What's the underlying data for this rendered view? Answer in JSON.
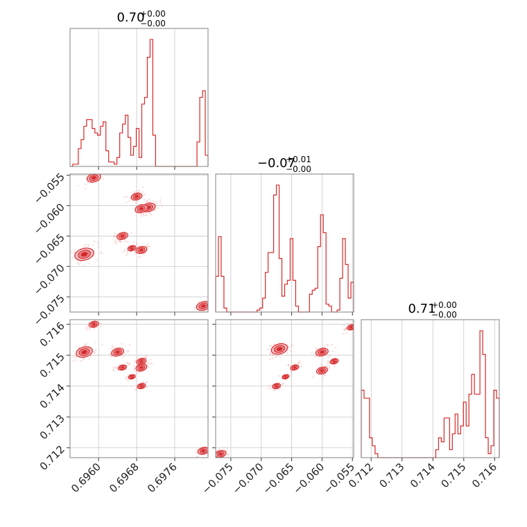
{
  "chart_data": {
    "type": "corner",
    "colors": {
      "main": "#d62728",
      "frame": "#808080",
      "grid": "#c8c8c8"
    },
    "parameters": [
      {
        "name": "p1",
        "title_value": "0.70",
        "title_upper": "+0.00",
        "title_lower": "−0.00",
        "range": [
          0.6954,
          0.6983
        ],
        "ticks": [
          0.696,
          0.6968,
          0.6976
        ],
        "tick_labels": [
          "0.6960",
          "0.6968",
          "0.6976"
        ],
        "hist_edges_count": 50,
        "hist_values": [
          0,
          1,
          1,
          8,
          12,
          18,
          21,
          21,
          17,
          15,
          14,
          18,
          20,
          7,
          2,
          2,
          1,
          4,
          15,
          19,
          23,
          13,
          5,
          9,
          17,
          4,
          28,
          31,
          49,
          57,
          14,
          0,
          0,
          0,
          0,
          0,
          0,
          0,
          0,
          0,
          0,
          0,
          0,
          0,
          0,
          0,
          11,
          31,
          34,
          5
        ]
      },
      {
        "name": "p2",
        "title_value": "−0.07",
        "title_upper": "+0.01",
        "title_lower": "−0.00",
        "range": [
          -0.0775,
          -0.0548
        ],
        "ticks": [
          -0.075,
          -0.07,
          -0.065,
          -0.06,
          -0.055
        ],
        "tick_labels": [
          "−0.075",
          "−0.070",
          "−0.065",
          "−0.060",
          "−0.055"
        ],
        "hist_edges_count": 50,
        "hist_values": [
          18,
          38,
          18,
          2,
          0,
          0,
          0,
          0,
          0,
          0,
          0,
          0,
          0,
          0,
          0,
          1,
          2,
          7,
          20,
          30,
          30,
          59,
          64,
          27,
          8,
          14,
          16,
          37,
          16,
          3,
          0,
          0,
          0,
          0,
          9,
          11,
          12,
          33,
          49,
          40,
          4,
          3,
          0,
          0,
          1,
          17,
          37,
          24,
          7,
          15
        ]
      },
      {
        "name": "p3",
        "title_value": "0.71",
        "title_upper": "+0.00",
        "title_lower": "−0.00",
        "range": [
          0.71168,
          0.71615
        ],
        "ticks": [
          0.712,
          0.713,
          0.714,
          0.715,
          0.716
        ],
        "tick_labels": [
          "0.712",
          "0.713",
          "0.714",
          "0.715",
          "0.716"
        ],
        "hist_edges_count": 50,
        "hist_values": [
          17,
          15,
          15,
          5,
          3,
          1,
          0,
          0,
          0,
          0,
          0,
          0,
          0,
          0,
          0,
          0,
          0,
          0,
          0,
          0,
          0,
          0,
          0,
          0,
          0,
          0,
          0,
          2,
          5,
          4,
          10,
          10,
          2,
          6,
          11,
          6,
          8,
          14,
          8,
          16,
          21,
          16,
          16,
          32,
          26,
          5,
          1,
          3,
          17,
          15
        ]
      }
    ],
    "blobs_2d": {
      "p2_vs_p1": [
        [
          0.6959,
          -0.0554,
          1.0
        ],
        [
          0.69705,
          -0.0603,
          1.0
        ],
        [
          0.6968,
          -0.0585,
          0.8
        ],
        [
          0.6969,
          -0.0605,
          0.9
        ],
        [
          0.6965,
          -0.065,
          0.8
        ],
        [
          0.6967,
          -0.067,
          0.6
        ],
        [
          0.6969,
          -0.0673,
          0.8
        ],
        [
          0.6957,
          -0.068,
          1.4
        ],
        [
          0.6982,
          -0.0765,
          1.0
        ]
      ],
      "p3_vs_p1": [
        [
          0.6959,
          0.716,
          0.7
        ],
        [
          0.6957,
          0.7151,
          1.2
        ],
        [
          0.6964,
          0.7151,
          0.9
        ],
        [
          0.6969,
          0.7148,
          0.7
        ],
        [
          0.6965,
          0.7146,
          0.6
        ],
        [
          0.6969,
          0.7146,
          0.8
        ],
        [
          0.6967,
          0.7143,
          0.5
        ],
        [
          0.6969,
          0.714,
          0.6
        ],
        [
          0.6982,
          0.7119,
          0.8
        ]
      ],
      "p3_vs_p2": [
        [
          -0.067,
          0.7152,
          1.2
        ],
        [
          -0.06,
          0.7151,
          0.9
        ],
        [
          -0.0645,
          0.7146,
          0.6
        ],
        [
          -0.06,
          0.7145,
          0.8
        ],
        [
          -0.058,
          0.7148,
          0.6
        ],
        [
          -0.066,
          0.7143,
          0.5
        ],
        [
          -0.0675,
          0.714,
          0.6
        ],
        [
          -0.0552,
          0.7159,
          0.6
        ],
        [
          -0.0767,
          0.7118,
          0.8
        ]
      ]
    },
    "grid": true,
    "xlabel": "",
    "ylabel": ""
  }
}
